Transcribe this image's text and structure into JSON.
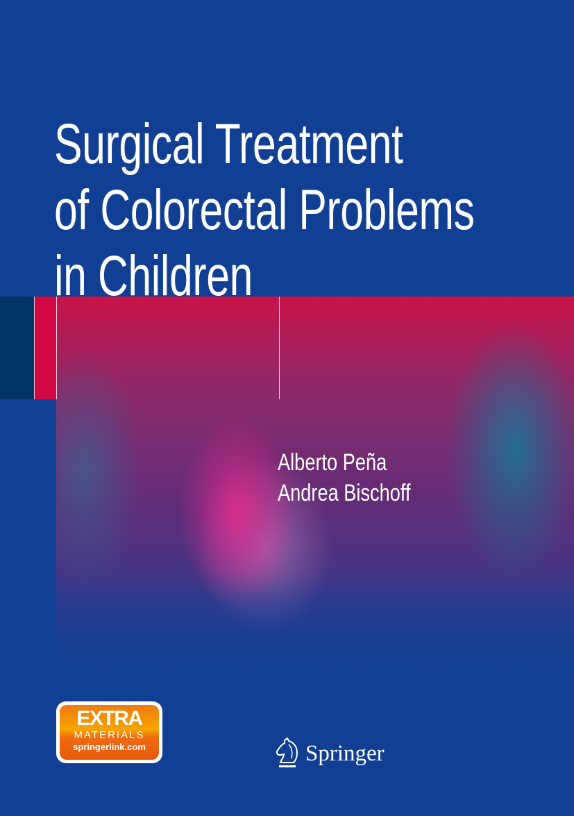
{
  "cover": {
    "title_lines": [
      "Surgical Treatment",
      "of Colorectal Problems",
      "in Children"
    ],
    "authors": [
      "Alberto Peña",
      "Andrea Bischoff"
    ],
    "badge": {
      "line1": "EXTRA",
      "line2": "MATERIALS",
      "line3": "springerlink.com"
    },
    "publisher": {
      "name": "Springer",
      "icon": "knight-horse-icon"
    },
    "colors": {
      "background": "#113f93",
      "accent_red": "#d20845",
      "navy": "#003366",
      "badge_orange": "#f07a10"
    }
  }
}
